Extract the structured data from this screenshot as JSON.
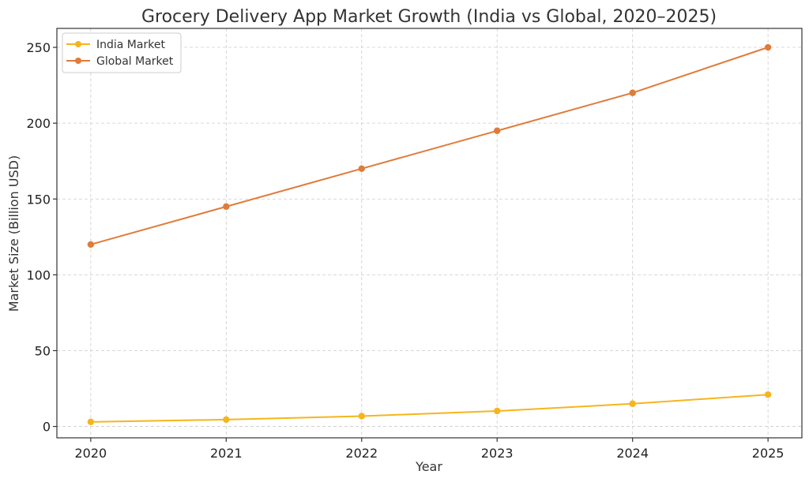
{
  "chart_data": {
    "type": "line",
    "title": "Grocery Delivery App Market Growth (India vs Global, 2020–2025)",
    "xlabel": "Year",
    "ylabel": "Market Size (Billion USD)",
    "x": [
      2020,
      2021,
      2022,
      2023,
      2024,
      2025
    ],
    "xticks": [
      "2020",
      "2021",
      "2022",
      "2023",
      "2024",
      "2025"
    ],
    "yticks": [
      0,
      50,
      100,
      150,
      200,
      250
    ],
    "ylim": [
      -7.5,
      262.5
    ],
    "xlim": [
      2019.75,
      2025.25
    ],
    "grid": true,
    "legend_position": "top-left",
    "series": [
      {
        "name": "India Market",
        "color": "#f5b51c",
        "values": [
          3,
          4.5,
          6.8,
          10.2,
          15,
          21
        ]
      },
      {
        "name": "Global Market",
        "color": "#e07b39",
        "values": [
          120,
          145,
          170,
          195,
          220,
          250
        ]
      }
    ]
  }
}
